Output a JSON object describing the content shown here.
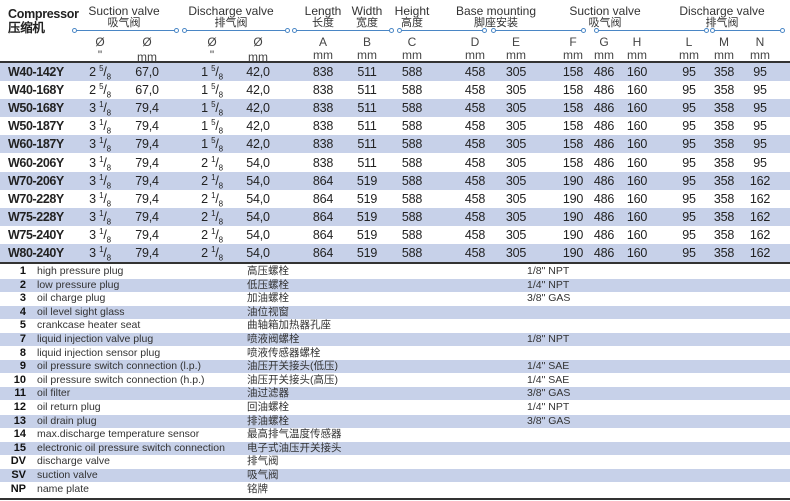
{
  "header": {
    "compressor_en": "Compressor",
    "compressor_cn": "压缩机",
    "groups": [
      {
        "en": "Suction valve",
        "cn": "吸气阀"
      },
      {
        "en": "Discharge valve",
        "cn": "排气阀"
      },
      {
        "en": "Length",
        "cn": "长度"
      },
      {
        "en": "Width",
        "cn": "宽度"
      },
      {
        "en": "Height",
        "cn": "高度"
      },
      {
        "en": "Base mounting",
        "cn": "脚座安装"
      },
      {
        "en": "Suction valve",
        "cn": "吸气阀"
      },
      {
        "en": "Discharge valve",
        "cn": "排气阀"
      }
    ],
    "units": [
      [
        "Ø",
        "\""
      ],
      [
        "Ø",
        "mm"
      ],
      [
        "Ø",
        "\""
      ],
      [
        "Ø",
        "mm"
      ],
      [
        "A",
        "mm"
      ],
      [
        "B",
        "mm"
      ],
      [
        "C",
        "mm"
      ],
      [
        "D",
        "mm"
      ],
      [
        "E",
        "mm"
      ],
      [
        "F",
        "mm"
      ],
      [
        "G",
        "mm"
      ],
      [
        "H",
        "mm"
      ],
      [
        "L",
        "mm"
      ],
      [
        "M",
        "mm"
      ],
      [
        "N",
        "mm"
      ]
    ]
  },
  "rows": [
    {
      "model": "W40-142Y",
      "sv_in": [
        "2",
        "5",
        "8"
      ],
      "sv_mm": "67,0",
      "dv_in": [
        "1",
        "5",
        "8"
      ],
      "dv_mm": "42,0",
      "A": "838",
      "B": "511",
      "C": "588",
      "D": "458",
      "E": "305",
      "F": "158",
      "G": "486",
      "H": "160",
      "L": "95",
      "M": "358",
      "N": "95"
    },
    {
      "model": "W40-168Y",
      "sv_in": [
        "2",
        "5",
        "8"
      ],
      "sv_mm": "67,0",
      "dv_in": [
        "1",
        "5",
        "8"
      ],
      "dv_mm": "42,0",
      "A": "838",
      "B": "511",
      "C": "588",
      "D": "458",
      "E": "305",
      "F": "158",
      "G": "486",
      "H": "160",
      "L": "95",
      "M": "358",
      "N": "95"
    },
    {
      "model": "W50-168Y",
      "sv_in": [
        "3",
        "1",
        "8"
      ],
      "sv_mm": "79,4",
      "dv_in": [
        "1",
        "5",
        "8"
      ],
      "dv_mm": "42,0",
      "A": "838",
      "B": "511",
      "C": "588",
      "D": "458",
      "E": "305",
      "F": "158",
      "G": "486",
      "H": "160",
      "L": "95",
      "M": "358",
      "N": "95"
    },
    {
      "model": "W50-187Y",
      "sv_in": [
        "3",
        "1",
        "8"
      ],
      "sv_mm": "79,4",
      "dv_in": [
        "1",
        "5",
        "8"
      ],
      "dv_mm": "42,0",
      "A": "838",
      "B": "511",
      "C": "588",
      "D": "458",
      "E": "305",
      "F": "158",
      "G": "486",
      "H": "160",
      "L": "95",
      "M": "358",
      "N": "95"
    },
    {
      "model": "W60-187Y",
      "sv_in": [
        "3",
        "1",
        "8"
      ],
      "sv_mm": "79,4",
      "dv_in": [
        "1",
        "5",
        "8"
      ],
      "dv_mm": "42,0",
      "A": "838",
      "B": "511",
      "C": "588",
      "D": "458",
      "E": "305",
      "F": "158",
      "G": "486",
      "H": "160",
      "L": "95",
      "M": "358",
      "N": "95"
    },
    {
      "model": "W60-206Y",
      "sv_in": [
        "3",
        "1",
        "8"
      ],
      "sv_mm": "79,4",
      "dv_in": [
        "2",
        "1",
        "8"
      ],
      "dv_mm": "54,0",
      "A": "838",
      "B": "511",
      "C": "588",
      "D": "458",
      "E": "305",
      "F": "158",
      "G": "486",
      "H": "160",
      "L": "95",
      "M": "358",
      "N": "95"
    },
    {
      "model": "W70-206Y",
      "sv_in": [
        "3",
        "1",
        "8"
      ],
      "sv_mm": "79,4",
      "dv_in": [
        "2",
        "1",
        "8"
      ],
      "dv_mm": "54,0",
      "A": "864",
      "B": "519",
      "C": "588",
      "D": "458",
      "E": "305",
      "F": "190",
      "G": "486",
      "H": "160",
      "L": "95",
      "M": "358",
      "N": "162"
    },
    {
      "model": "W70-228Y",
      "sv_in": [
        "3",
        "1",
        "8"
      ],
      "sv_mm": "79,4",
      "dv_in": [
        "2",
        "1",
        "8"
      ],
      "dv_mm": "54,0",
      "A": "864",
      "B": "519",
      "C": "588",
      "D": "458",
      "E": "305",
      "F": "190",
      "G": "486",
      "H": "160",
      "L": "95",
      "M": "358",
      "N": "162"
    },
    {
      "model": "W75-228Y",
      "sv_in": [
        "3",
        "1",
        "8"
      ],
      "sv_mm": "79,4",
      "dv_in": [
        "2",
        "1",
        "8"
      ],
      "dv_mm": "54,0",
      "A": "864",
      "B": "519",
      "C": "588",
      "D": "458",
      "E": "305",
      "F": "190",
      "G": "486",
      "H": "160",
      "L": "95",
      "M": "358",
      "N": "162"
    },
    {
      "model": "W75-240Y",
      "sv_in": [
        "3",
        "1",
        "8"
      ],
      "sv_mm": "79,4",
      "dv_in": [
        "2",
        "1",
        "8"
      ],
      "dv_mm": "54,0",
      "A": "864",
      "B": "519",
      "C": "588",
      "D": "458",
      "E": "305",
      "F": "190",
      "G": "486",
      "H": "160",
      "L": "95",
      "M": "358",
      "N": "162"
    },
    {
      "model": "W80-240Y",
      "sv_in": [
        "3",
        "1",
        "8"
      ],
      "sv_mm": "79,4",
      "dv_in": [
        "2",
        "1",
        "8"
      ],
      "dv_mm": "54,0",
      "A": "864",
      "B": "519",
      "C": "588",
      "D": "458",
      "E": "305",
      "F": "190",
      "G": "486",
      "H": "160",
      "L": "95",
      "M": "358",
      "N": "162"
    }
  ],
  "legend": [
    {
      "num": "1",
      "en": "high pressure plug",
      "cn": "高压螺栓",
      "spec": "1/8\" NPT"
    },
    {
      "num": "2",
      "en": "low pressure plug",
      "cn": "低压螺栓",
      "spec": "1/4\" NPT"
    },
    {
      "num": "3",
      "en": "oil charge plug",
      "cn": "加油螺栓",
      "spec": "3/8\" GAS"
    },
    {
      "num": "4",
      "en": "oil level sight glass",
      "cn": "油位视窗",
      "spec": ""
    },
    {
      "num": "5",
      "en": "crankcase heater seat",
      "cn": "曲轴箱加热器孔座",
      "spec": ""
    },
    {
      "num": "7",
      "en": "liquid injection valve plug",
      "cn": "喷液阀螺栓",
      "spec": "1/8\" NPT"
    },
    {
      "num": "8",
      "en": "liquid injection sensor plug",
      "cn": "喷液传感器螺栓",
      "spec": ""
    },
    {
      "num": "9",
      "en": "oil pressure switch connection (l.p.)",
      "cn": "油压开关接头(低压)",
      "spec": "1/4\" SAE"
    },
    {
      "num": "10",
      "en": "oil pressure switch connection (h.p.)",
      "cn": "油压开关接头(高压)",
      "spec": "1/4\" SAE"
    },
    {
      "num": "11",
      "en": "oil filter",
      "cn": "油过滤器",
      "spec": "3/8\" GAS"
    },
    {
      "num": "12",
      "en": "oil return plug",
      "cn": "回油螺栓",
      "spec": "1/4\" NPT"
    },
    {
      "num": "13",
      "en": "oil drain plug",
      "cn": "排油螺栓",
      "spec": "3/8\" GAS"
    },
    {
      "num": "14",
      "en": "max.discharge temperature sensor",
      "cn": "最高排气温度传感器",
      "spec": ""
    },
    {
      "num": "15",
      "en": "electronic oil pressure switch connection",
      "cn": "电子式油压开关接头",
      "spec": ""
    },
    {
      "num": "DV",
      "en": "discharge valve",
      "cn": "排气阀",
      "spec": ""
    },
    {
      "num": "SV",
      "en": "suction valve",
      "cn": "吸气阀",
      "spec": ""
    },
    {
      "num": "NP",
      "en": "name plate",
      "cn": "铭牌",
      "spec": ""
    }
  ],
  "colors": {
    "row_band": "#c7d1e9",
    "group_line": "#4a86c5"
  }
}
